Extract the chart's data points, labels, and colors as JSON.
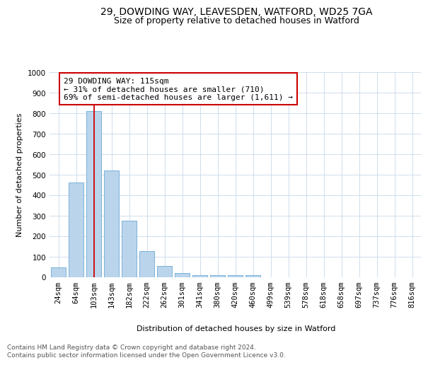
{
  "title_line1": "29, DOWDING WAY, LEAVESDEN, WATFORD, WD25 7GA",
  "title_line2": "Size of property relative to detached houses in Watford",
  "xlabel": "Distribution of detached houses by size in Watford",
  "ylabel": "Number of detached properties",
  "categories": [
    "24sqm",
    "64sqm",
    "103sqm",
    "143sqm",
    "182sqm",
    "222sqm",
    "262sqm",
    "301sqm",
    "341sqm",
    "380sqm",
    "420sqm",
    "460sqm",
    "499sqm",
    "539sqm",
    "578sqm",
    "618sqm",
    "658sqm",
    "697sqm",
    "737sqm",
    "776sqm",
    "816sqm"
  ],
  "values": [
    46,
    460,
    810,
    520,
    275,
    125,
    55,
    20,
    10,
    10,
    8,
    8,
    0,
    0,
    0,
    0,
    0,
    0,
    0,
    0,
    0
  ],
  "bar_color": "#bad4ec",
  "bar_edgecolor": "#6aaad4",
  "vline_x_idx": 2,
  "vline_color": "#cc0000",
  "annotation_text": "29 DOWDING WAY: 115sqm\n← 31% of detached houses are smaller (710)\n69% of semi-detached houses are larger (1,611) →",
  "annotation_box_color": "#ffffff",
  "annotation_box_edgecolor": "#cc0000",
  "ylim": [
    0,
    1000
  ],
  "yticks": [
    0,
    100,
    200,
    300,
    400,
    500,
    600,
    700,
    800,
    900,
    1000
  ],
  "background_color": "#ffffff",
  "grid_color": "#c8d8e8",
  "footer_text": "Contains HM Land Registry data © Crown copyright and database right 2024.\nContains public sector information licensed under the Open Government Licence v3.0.",
  "title_fontsize": 10,
  "subtitle_fontsize": 9,
  "axis_label_fontsize": 8,
  "tick_fontsize": 7.5,
  "annotation_fontsize": 8,
  "footer_fontsize": 6.5
}
